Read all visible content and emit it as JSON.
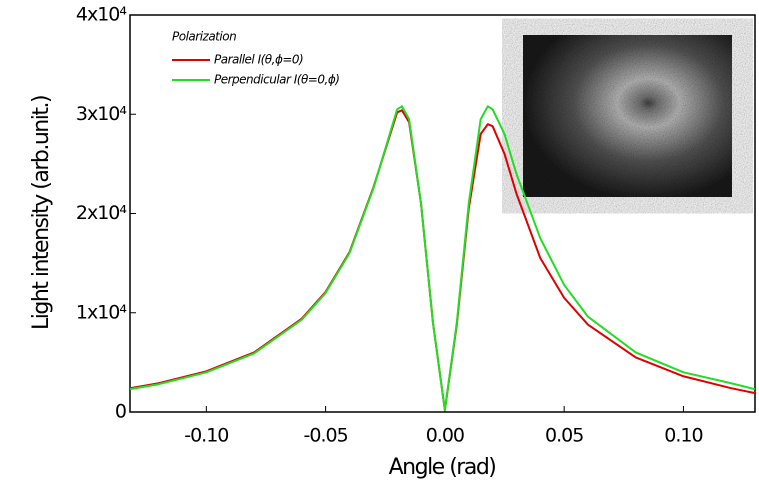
{
  "chart_data": {
    "type": "line",
    "x_label": "Angle (rad)",
    "y_label": "Light intensity (arb.unit.)",
    "legend_title": "Polarization",
    "legend": "upper left",
    "x": [
      -0.132,
      -0.12,
      -0.1,
      -0.08,
      -0.06,
      -0.05,
      -0.04,
      -0.03,
      -0.025,
      -0.02,
      -0.018,
      -0.015,
      -0.01,
      -0.005,
      0,
      0.005,
      0.01,
      0.015,
      0.018,
      0.02,
      0.025,
      0.03,
      0.04,
      0.05,
      0.06,
      0.08,
      0.1,
      0.12,
      0.13
    ],
    "series": [
      {
        "name": "Parallel I(θ,ϕ=0)",
        "color": "#e00000",
        "values": [
          2400,
          2900,
          4100,
          6000,
          9400,
          12100,
          16100,
          22600,
          26400,
          30200,
          30400,
          29200,
          21000,
          9000,
          200,
          8800,
          20500,
          28000,
          29000,
          28800,
          26000,
          22000,
          15500,
          11500,
          8800,
          5500,
          3600,
          2400,
          1900
        ]
      },
      {
        "name": "Perpendicular I(θ=0,ϕ)",
        "color": "#22dd22",
        "values": [
          2300,
          2800,
          4000,
          5900,
          9300,
          12000,
          16000,
          22500,
          26500,
          30500,
          30800,
          29500,
          21000,
          9000,
          200,
          9000,
          21000,
          29500,
          30800,
          30500,
          28000,
          24000,
          17500,
          12800,
          9600,
          6000,
          4000,
          2900,
          2300
        ]
      }
    ],
    "xlim": [
      -0.132,
      0.13
    ],
    "ylim": [
      0,
      40000
    ],
    "xticks": [
      {
        "value": -0.1,
        "label": "-0.10"
      },
      {
        "value": -0.05,
        "label": "-0.05"
      },
      {
        "value": 0,
        "label": "0.00"
      },
      {
        "value": 0.05,
        "label": "0.05"
      },
      {
        "value": 0.1,
        "label": "0.10"
      }
    ],
    "yticks": [
      0,
      {
        "value": 10000,
        "label": "1x10⁴"
      },
      {
        "value": 20000,
        "label": "2x10⁴"
      },
      {
        "value": 30000,
        "label": "3x10⁴"
      },
      {
        "value": 40000,
        "label": "4x10⁴"
      }
    ],
    "grid": false
  }
}
